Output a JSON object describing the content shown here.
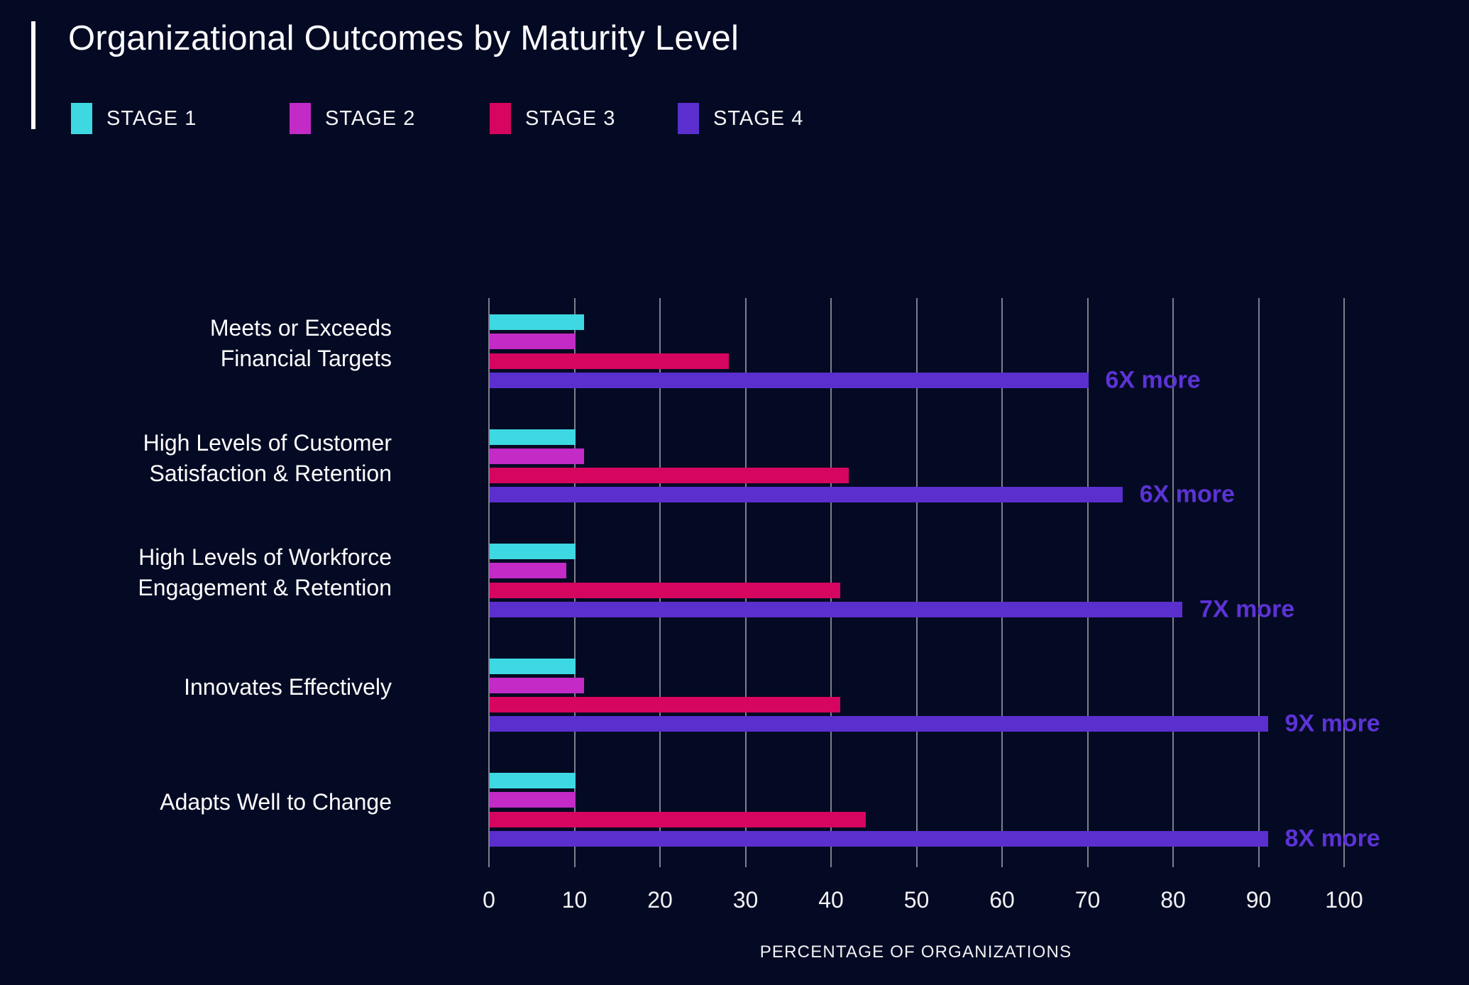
{
  "title": "Organizational Outcomes by Maturity Level",
  "colors": {
    "background": "#050a24",
    "gridline": "#7e7e8c",
    "text": "#fcfcfe",
    "annotation": "#5c33d6",
    "stage1": "#3ed8e2",
    "stage2": "#c32ac6",
    "stage3": "#d6055f",
    "stage4": "#5a2fce"
  },
  "legend": {
    "items": [
      {
        "label": "STAGE 1",
        "color": "#3ed8e2"
      },
      {
        "label": "STAGE 2",
        "color": "#c32ac6"
      },
      {
        "label": "STAGE 3",
        "color": "#d6055f"
      },
      {
        "label": "STAGE 4",
        "color": "#5a2fce"
      }
    ]
  },
  "chart_data": {
    "type": "bar",
    "orientation": "horizontal",
    "title": "Organizational Outcomes by Maturity Level",
    "xlabel": "PERCENTAGE OF ORGANIZATIONS",
    "xlim": [
      0,
      100
    ],
    "x_ticks": [
      0,
      10,
      20,
      30,
      40,
      50,
      60,
      70,
      80,
      90,
      100
    ],
    "grid": true,
    "legend_position": "top-left",
    "categories": [
      "Meets or Exceeds Financial Targets",
      "High Levels of Customer Satisfaction & Retention",
      "High Levels of Workforce Engagement & Retention",
      "Innovates Effectively",
      "Adapts Well to Change"
    ],
    "category_lines": [
      [
        "Meets or Exceeds",
        "Financial Targets"
      ],
      [
        "High Levels of Customer",
        "Satisfaction & Retention"
      ],
      [
        "High Levels of Workforce",
        "Engagement & Retention"
      ],
      [
        "Innovates Effectively"
      ],
      [
        "Adapts Well to Change"
      ]
    ],
    "series": [
      {
        "name": "STAGE 1",
        "color": "#3ed8e2",
        "values": [
          11,
          10,
          10,
          10,
          10
        ]
      },
      {
        "name": "STAGE 2",
        "color": "#c32ac6",
        "values": [
          10,
          11,
          9,
          11,
          10
        ]
      },
      {
        "name": "STAGE 3",
        "color": "#d6055f",
        "values": [
          28,
          42,
          41,
          41,
          44
        ]
      },
      {
        "name": "STAGE 4",
        "color": "#5a2fce",
        "values": [
          70,
          74,
          81,
          91,
          91
        ]
      }
    ],
    "annotations": [
      "6X more",
      "6X more",
      "7X more",
      "9X more",
      "8X more"
    ]
  }
}
